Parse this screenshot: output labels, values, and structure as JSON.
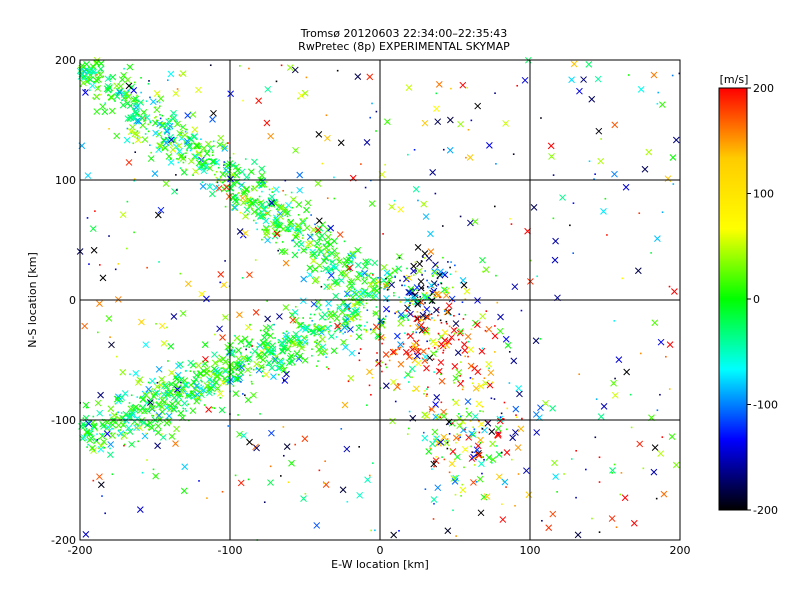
{
  "chart_data": {
    "type": "scatter",
    "title": "Tromsø 20120603 22:34:00–22:35:43",
    "subtitle": "RwPretec (8p) EXPERIMENTAL SKYMAP",
    "xlabel": "E-W location [km]",
    "ylabel": "N-S location [km]",
    "xlim": [
      -200,
      200
    ],
    "ylim": [
      -200,
      200
    ],
    "x_ticks": [
      -200,
      -100,
      0,
      100,
      200
    ],
    "y_ticks": [
      -200,
      -100,
      0,
      100,
      200
    ],
    "x_tick_labels": [
      "-200",
      "-100",
      "0",
      "100",
      "200"
    ],
    "y_tick_labels": [
      "-200",
      "-100",
      "0",
      "100",
      "200"
    ],
    "grid": true,
    "colorbar": {
      "unit": "[m/s]",
      "range": [
        -200,
        200
      ],
      "ticks": [
        200,
        100,
        0,
        -100,
        -200
      ],
      "tick_labels": [
        "200",
        "100",
        "0",
        "-100",
        "-200"
      ],
      "colors": [
        "#ff0000",
        "#ffcc00",
        "#ffff00",
        "#00ff00",
        "#00ffff",
        "#0000ff",
        "#000000"
      ]
    },
    "features": [
      {
        "kind": "band",
        "from": [
          -200,
          -115
        ],
        "to": [
          -5,
          -5
        ],
        "width_km": 22,
        "velocity": 0
      },
      {
        "kind": "band",
        "from": [
          -200,
          195
        ],
        "to": [
          0,
          5
        ],
        "width_km": 18,
        "velocity": 0
      },
      {
        "kind": "cluster",
        "center": [
          30,
          5
        ],
        "spread_km": [
          25,
          25
        ],
        "velocity": -80
      },
      {
        "kind": "cluster",
        "center": [
          30,
          -40
        ],
        "spread_km": [
          40,
          40
        ],
        "velocity": 150
      },
      {
        "kind": "cluster",
        "center": [
          60,
          -110
        ],
        "spread_km": [
          30,
          40
        ],
        "velocity": 50
      },
      {
        "kind": "scatter",
        "extent": [
          -200,
          200
        ],
        "velocity": "mixed"
      }
    ]
  }
}
